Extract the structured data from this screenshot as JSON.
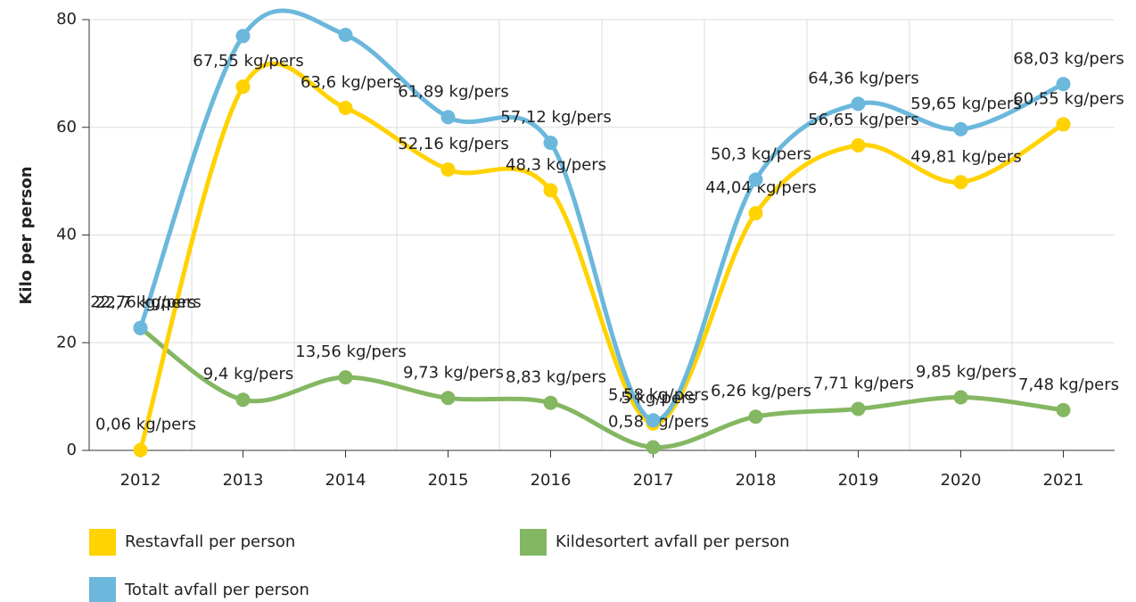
{
  "chart_data": {
    "type": "line",
    "y_label": "Kilo per person",
    "categories": [
      "2012",
      "2013",
      "2014",
      "2015",
      "2016",
      "2017",
      "2018",
      "2019",
      "2020",
      "2021"
    ],
    "series": [
      {
        "name": "Restavfall per person",
        "color": "#ffd200",
        "values": [
          0.06,
          67.55,
          63.6,
          52.16,
          48.3,
          5,
          44.04,
          56.65,
          49.81,
          60.55
        ],
        "value_labels": [
          "0,06 kg/pers",
          "67,55 kg/pers",
          "63,6 kg/pers",
          "52,16 kg/pers",
          "48,3 kg/pers",
          "5 kg/pers",
          "44,04 kg/pers",
          "56,65 kg/pers",
          "49,81 kg/pers",
          "60,55 kg/pers"
        ]
      },
      {
        "name": "Kildesortert avfall per person",
        "color": "#84b762",
        "values": [
          22.7,
          9.4,
          13.56,
          9.73,
          8.83,
          0.58,
          6.26,
          7.71,
          9.85,
          7.48
        ],
        "value_labels": [
          "22,7 kg/pers",
          "9,4 kg/pers",
          "13,56 kg/pers",
          "9,73 kg/pers",
          "8,83 kg/pers",
          "0,58 kg/pers",
          "6,26 kg/pers",
          "7,71 kg/pers",
          "9,85 kg/pers",
          "7,48 kg/pers"
        ]
      },
      {
        "name": "Totalt avfall per person",
        "color": "#6bb8dc",
        "values": [
          22.76,
          76.95,
          77.16,
          61.89,
          57.12,
          5.58,
          50.3,
          64.36,
          59.65,
          68.03
        ],
        "value_labels": [
          "22,76 kg/pers",
          null,
          null,
          "61,89 kg/pers",
          "57,12 kg/pers",
          "5,58 kg/pers",
          "50,3 kg/pers",
          "64,36 kg/pers",
          "59,65 kg/pers",
          "68,03 kg/pers"
        ]
      }
    ],
    "ylim": [
      0,
      80
    ],
    "yticks": [
      0,
      20,
      40,
      60,
      80
    ],
    "grid": true
  }
}
